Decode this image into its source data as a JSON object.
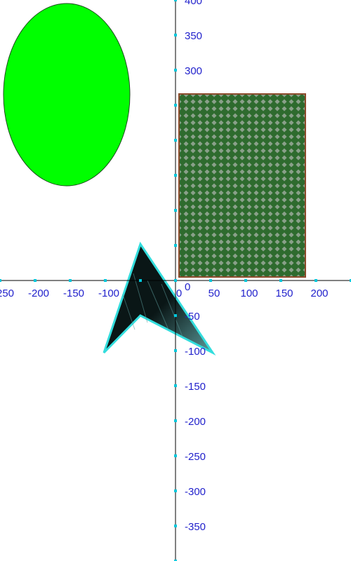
{
  "colors": {
    "axis": "#000000",
    "tick_mark": "#00c8dc",
    "tick_label": "#2222cc",
    "ellipse_fill": "#00ff00",
    "ellipse_stroke": "#1a4d1a",
    "rect_base": "#2e6b2e",
    "rect_check": "#8aa08a",
    "rect_stroke": "#8b4a2a",
    "arrow_fill": "#0a1616",
    "arrow_streak": "#5a9a9a",
    "arrow_stroke": "#33dddd"
  },
  "chart_data": {
    "type": "diagram",
    "x_range": [
      -250,
      250
    ],
    "y_range": [
      -400,
      400
    ],
    "x_tick_labels": [
      "-250",
      "-200",
      "-150",
      "-100",
      "0",
      "50",
      "100",
      "150",
      "200"
    ],
    "y_tick_labels": [
      "400",
      "350",
      "300",
      "-50",
      "-100",
      "-150",
      "-200",
      "-250",
      "-300",
      "-350"
    ],
    "origin_label": "0",
    "shapes": [
      {
        "kind": "ellipse",
        "name": "green-ellipse",
        "center": [
          -155,
          265
        ],
        "rx": 90,
        "ry": 130
      },
      {
        "kind": "rect",
        "name": "checkered-rectangle",
        "x": [
          5,
          185
        ],
        "y": [
          5,
          266
        ],
        "pattern": "checkerboard"
      },
      {
        "kind": "polygon",
        "name": "dark-arrowhead",
        "points": [
          [
            -50,
            52
          ],
          [
            -102,
            -103
          ],
          [
            -50,
            -50
          ],
          [
            53,
            -103
          ]
        ]
      }
    ]
  }
}
